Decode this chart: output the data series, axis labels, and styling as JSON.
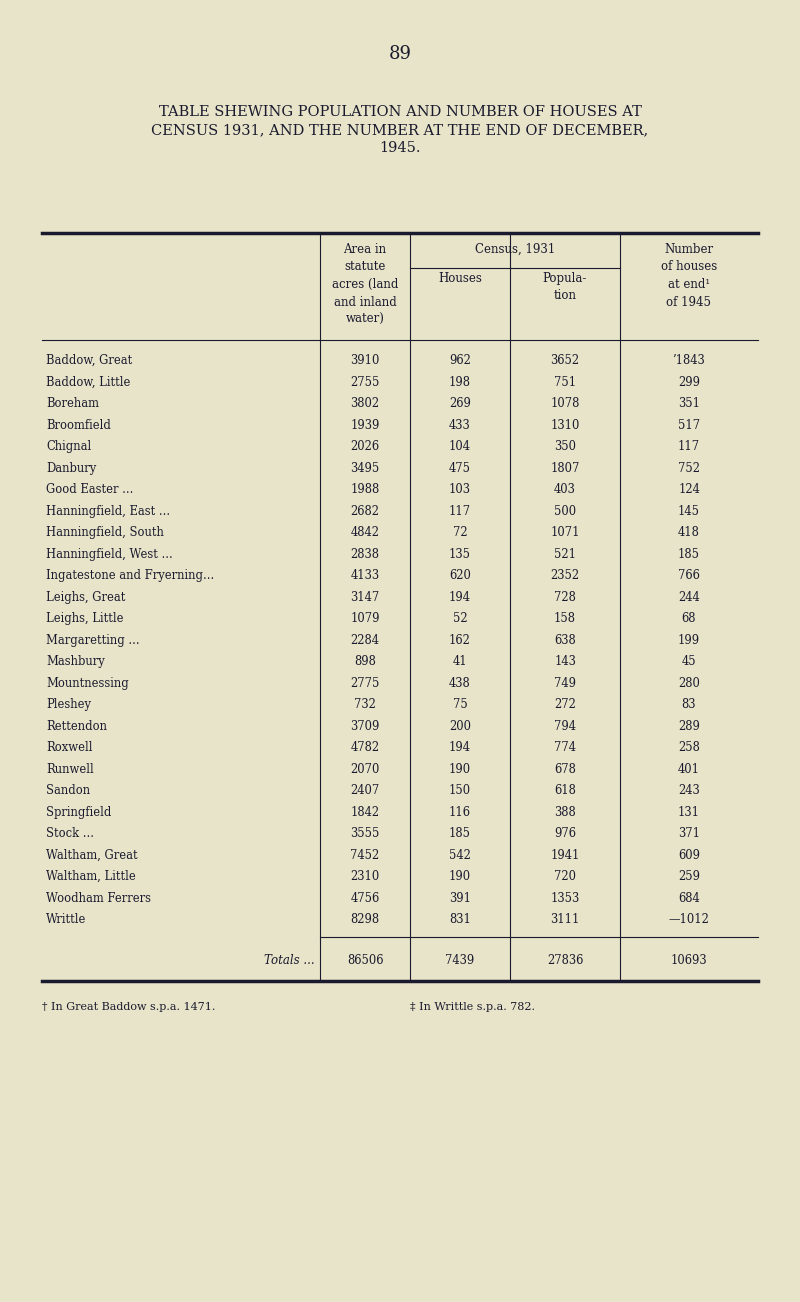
{
  "page_number": "89",
  "title_line1": "TABLE SHEWING POPULATION AND NUMBER OF HOUSES AT",
  "title_line2": "CENSUS 1931, AND THE NUMBER AT THE END OF DECEMBER,",
  "title_line3": "1945.",
  "bg_color": "#e8e4c9",
  "text_color": "#1a1a2e",
  "rows": [
    [
      "Baddow, Great",
      "3910",
      "962",
      "3652",
      "’1843"
    ],
    [
      "Baddow, Little",
      "2755",
      "198",
      "751",
      "299"
    ],
    [
      "Boreham",
      "3802",
      "269",
      "1078",
      "351"
    ],
    [
      "Broomfield",
      "1939",
      "433",
      "1310",
      "517"
    ],
    [
      "Chignal",
      "2026",
      "104",
      "350",
      "117"
    ],
    [
      "Danbury",
      "3495",
      "475",
      "1807",
      "752"
    ],
    [
      "Good Easter ...",
      "1988",
      "103",
      "403",
      "124"
    ],
    [
      "Hanningfield, East ...",
      "2682",
      "117",
      "500",
      "145"
    ],
    [
      "Hanningfield, South",
      "4842",
      "72",
      "1071",
      "418"
    ],
    [
      "Hanningfield, West ...",
      "2838",
      "135",
      "521",
      "185"
    ],
    [
      "Ingatestone and Fryerning...",
      "4133",
      "620",
      "2352",
      "766"
    ],
    [
      "Leighs, Great",
      "3147",
      "194",
      "728",
      "244"
    ],
    [
      "Leighs, Little",
      "1079",
      "52",
      "158",
      "68"
    ],
    [
      "Margaretting ...",
      "2284",
      "162",
      "638",
      "199"
    ],
    [
      "Mashbury",
      "898",
      "41",
      "143",
      "45"
    ],
    [
      "Mountnessing",
      "2775",
      "438",
      "749",
      "280"
    ],
    [
      "Pleshey",
      "732",
      "75",
      "272",
      "83"
    ],
    [
      "Rettendon",
      "3709",
      "200",
      "794",
      "289"
    ],
    [
      "Roxwell",
      "4782",
      "194",
      "774",
      "258"
    ],
    [
      "Runwell",
      "2070",
      "190",
      "678",
      "401"
    ],
    [
      "Sandon",
      "2407",
      "150",
      "618",
      "243"
    ],
    [
      "Springfield",
      "1842",
      "116",
      "388",
      "131"
    ],
    [
      "Stock ...",
      "3555",
      "185",
      "976",
      "371"
    ],
    [
      "Waltham, Great",
      "7452",
      "542",
      "1941",
      "609"
    ],
    [
      "Waltham, Little",
      "2310",
      "190",
      "720",
      "259"
    ],
    [
      "Woodham Ferrers",
      "4756",
      "391",
      "1353",
      "684"
    ],
    [
      "Writtle",
      "8298",
      "831",
      "3111",
      "—1012"
    ]
  ],
  "totals_label": "Totals",
  "totals": [
    "86506",
    "7439",
    "27836",
    "10693"
  ],
  "footnote1": "† In Great Baddow s.p.a. 1471.",
  "footnote2": "‡ In Writtle s.p.a. 782."
}
